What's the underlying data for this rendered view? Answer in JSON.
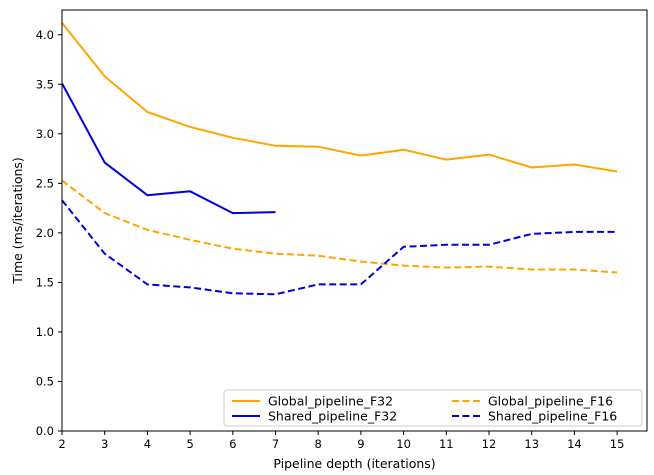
{
  "chart_data": {
    "type": "line",
    "xlabel": "Pipeline depth (iterations)",
    "ylabel": "Time (ms/iterations)",
    "xlim": [
      2,
      15.7
    ],
    "ylim": [
      0,
      4.25
    ],
    "xticks": [
      "2",
      "3",
      "4",
      "5",
      "6",
      "7",
      "8",
      "9",
      "10",
      "11",
      "12",
      "13",
      "14",
      "15"
    ],
    "yticks": [
      "0.0",
      "0.5",
      "1.0",
      "1.5",
      "2.0",
      "2.5",
      "3.0",
      "3.5",
      "4.0"
    ],
    "grid": false,
    "legend_position": "bottom-right",
    "series": [
      {
        "name": "Global_pipeline_F32",
        "color": "#FFA500",
        "style": "solid",
        "x": [
          2,
          3,
          4,
          5,
          6,
          7,
          8,
          9,
          10,
          11,
          12,
          13,
          14,
          15
        ],
        "y": [
          4.12,
          3.58,
          3.22,
          3.07,
          2.96,
          2.88,
          2.87,
          2.78,
          2.84,
          2.74,
          2.79,
          2.66,
          2.69,
          2.62
        ]
      },
      {
        "name": "Shared_pipeline_F32",
        "color": "#0000DD",
        "style": "solid",
        "x": [
          2,
          3,
          4,
          5,
          6,
          7
        ],
        "y": [
          3.51,
          2.71,
          2.38,
          2.42,
          2.2,
          2.21
        ]
      },
      {
        "name": "Global_pipeline_F16",
        "color": "#FFA500",
        "style": "dashed",
        "x": [
          2,
          3,
          4,
          5,
          6,
          7,
          8,
          9,
          10,
          11,
          12,
          13,
          14,
          15
        ],
        "y": [
          2.53,
          2.2,
          2.03,
          1.93,
          1.84,
          1.79,
          1.77,
          1.71,
          1.67,
          1.65,
          1.66,
          1.63,
          1.63,
          1.6
        ]
      },
      {
        "name": "Shared_pipeline_F16",
        "color": "#0000DD",
        "style": "dashed",
        "x": [
          2,
          3,
          4,
          5,
          6,
          7,
          8,
          9,
          10,
          11,
          12,
          13,
          14,
          15
        ],
        "y": [
          2.33,
          1.79,
          1.48,
          1.45,
          1.39,
          1.38,
          1.48,
          1.48,
          1.86,
          1.88,
          1.88,
          1.99,
          2.01,
          2.01
        ]
      }
    ]
  }
}
